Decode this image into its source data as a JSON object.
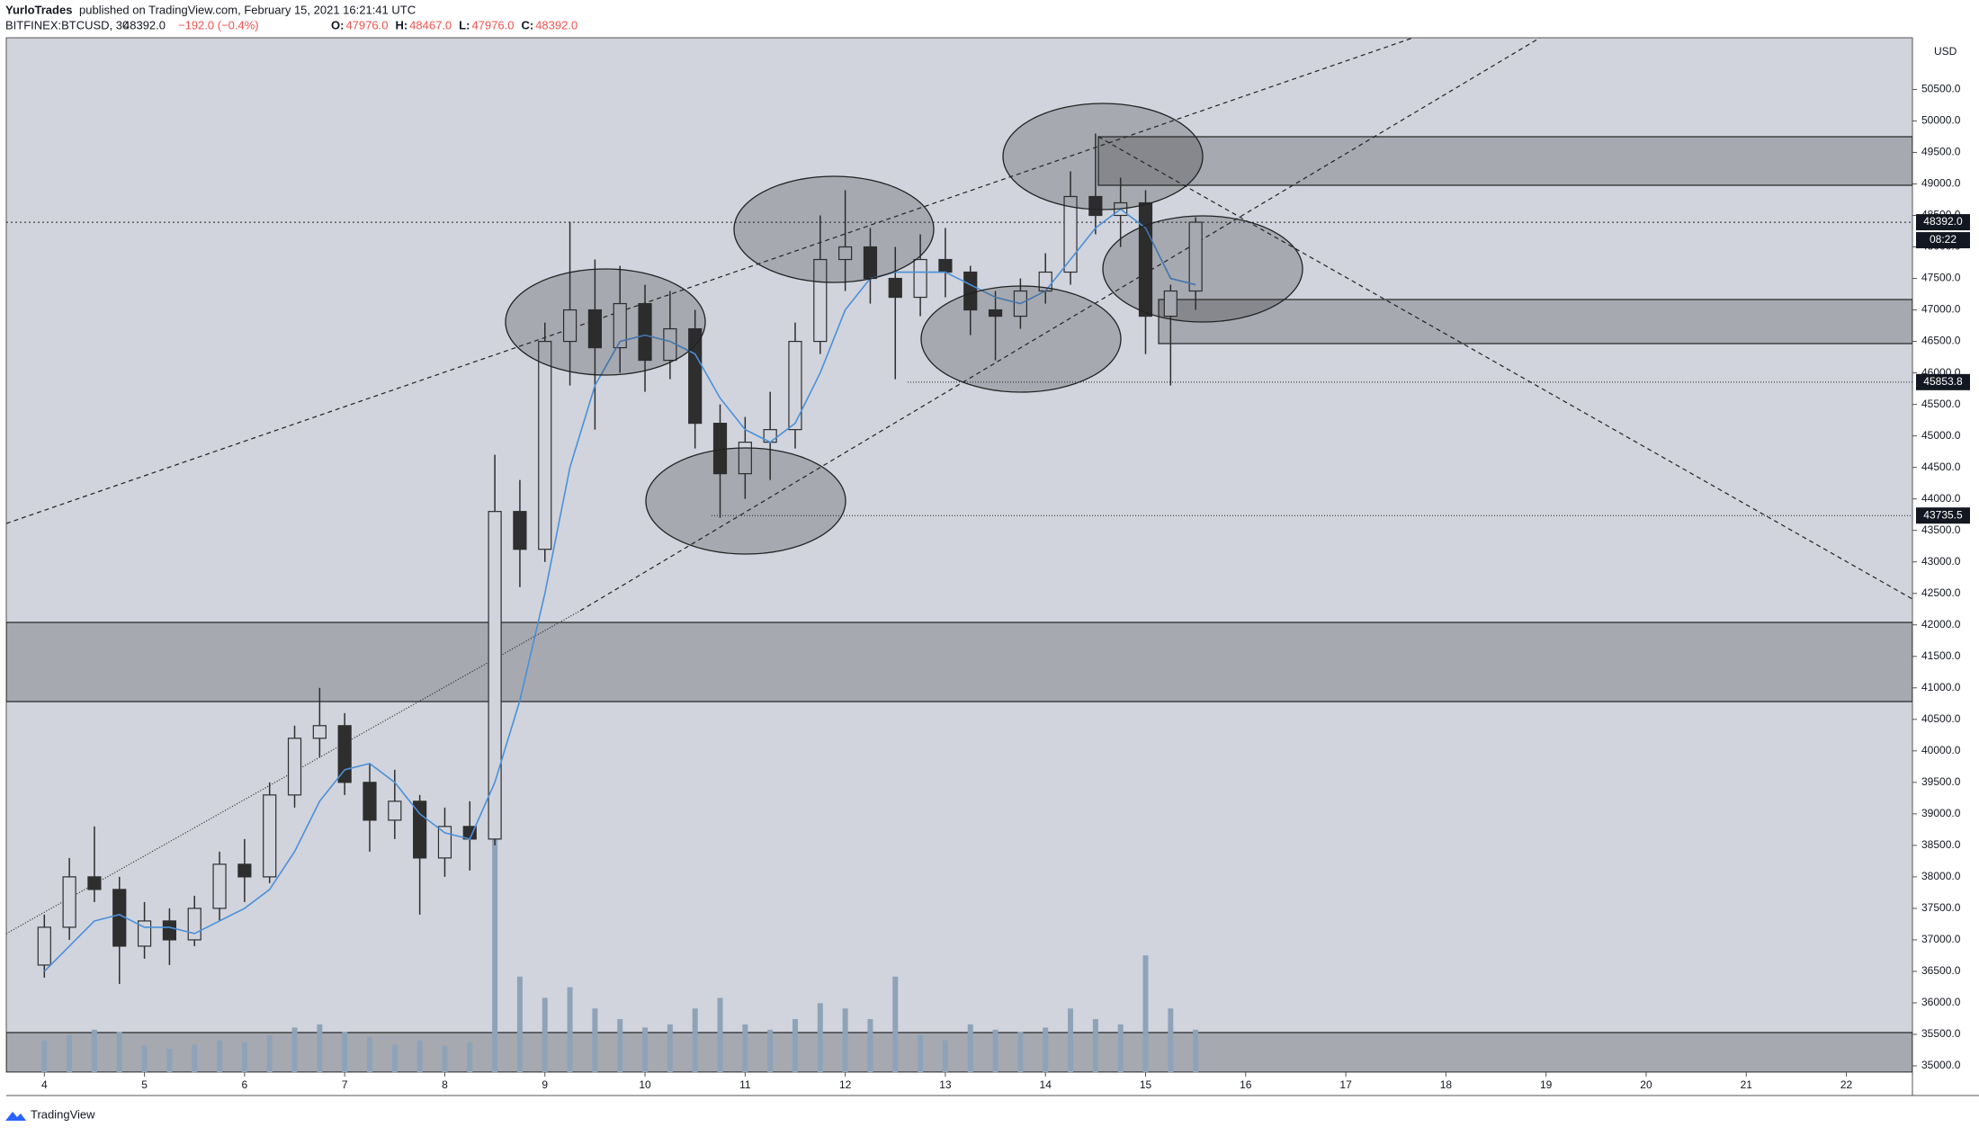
{
  "header": {
    "publisher": "YurloTrades",
    "published": "published on TradingView.com, February 15, 2021 16:21:41 UTC",
    "symbol": "BITFINEX:BTCUSD, 30",
    "last": "48392.0",
    "change": "−192.0 (−0.4%)",
    "ohlc": [
      {
        "label": "O:",
        "value": "47976.0"
      },
      {
        "label": "H:",
        "value": "48467.0"
      },
      {
        "label": "L:",
        "value": "47976.0"
      },
      {
        "label": "C:",
        "value": "48392.0"
      }
    ],
    "currency": "USD",
    "countdown": "08:22",
    "brand": "TradingView"
  },
  "chart_data": {
    "type": "candlestick",
    "x": [
      4.0,
      4.25,
      4.5,
      4.75,
      5.0,
      5.25,
      5.5,
      5.75,
      6.0,
      6.25,
      6.5,
      6.75,
      7.0,
      7.25,
      7.5,
      7.75,
      8.0,
      8.25,
      8.5,
      8.75,
      9.0,
      9.25,
      9.5,
      9.75,
      10.0,
      10.25,
      10.5,
      10.75,
      11.0,
      11.25,
      11.5,
      11.75,
      12.0,
      12.25,
      12.5,
      12.75,
      13.0,
      13.25,
      13.5,
      13.75,
      14.0,
      14.25,
      14.5,
      14.75,
      15.0,
      15.25,
      15.5
    ],
    "open": [
      36600,
      37200,
      38000,
      37800,
      36900,
      37300,
      37000,
      37500,
      38200,
      38000,
      39300,
      40200,
      40400,
      39500,
      38900,
      39200,
      38300,
      38800,
      38600,
      43800,
      43200,
      46500,
      47000,
      46400,
      47100,
      46200,
      46700,
      45200,
      44400,
      44900,
      45100,
      46500,
      47800,
      48000,
      47500,
      47200,
      47800,
      47600,
      47000,
      46900,
      47300,
      47600,
      48800,
      48500,
      48700,
      46900,
      47300
    ],
    "high": [
      37400,
      38300,
      38800,
      38000,
      37600,
      37500,
      37700,
      38400,
      38600,
      39500,
      40400,
      41000,
      40600,
      39800,
      39700,
      39300,
      39100,
      39200,
      44700,
      44300,
      46800,
      48400,
      47800,
      47700,
      47400,
      47300,
      47000,
      45500,
      45300,
      45700,
      46800,
      48500,
      48900,
      48300,
      48000,
      48200,
      48300,
      47700,
      47300,
      47500,
      47900,
      49200,
      49800,
      49100,
      48900,
      47400,
      48470
    ],
    "low": [
      36400,
      37000,
      37600,
      36300,
      36700,
      36600,
      36900,
      37300,
      37600,
      37900,
      39100,
      39900,
      39300,
      38400,
      38600,
      37400,
      38000,
      38100,
      38500,
      42600,
      43000,
      45800,
      45100,
      46000,
      45700,
      45900,
      44800,
      43700,
      44000,
      44300,
      44800,
      46300,
      47300,
      47100,
      45900,
      46900,
      47200,
      46600,
      46200,
      46700,
      47100,
      47400,
      48200,
      48000,
      46300,
      45800,
      47000
    ],
    "close": [
      37200,
      38000,
      37800,
      36900,
      37300,
      37000,
      37500,
      38200,
      38000,
      39300,
      40200,
      40400,
      39500,
      38900,
      39200,
      38300,
      38800,
      38600,
      43800,
      43200,
      46500,
      47000,
      46400,
      47100,
      46200,
      46700,
      45200,
      44400,
      44900,
      45100,
      46500,
      47800,
      48000,
      47500,
      47200,
      47800,
      47600,
      47000,
      46900,
      47300,
      47600,
      48800,
      48500,
      48700,
      46900,
      47300,
      48392
    ],
    "ma": [
      36500,
      36900,
      37300,
      37400,
      37200,
      37200,
      37100,
      37300,
      37500,
      37800,
      38400,
      39200,
      39700,
      39800,
      39500,
      39000,
      38700,
      38600,
      39500,
      40800,
      42500,
      44500,
      45800,
      46500,
      46600,
      46500,
      46300,
      45600,
      45100,
      44900,
      45200,
      46000,
      47000,
      47500,
      47600,
      47600,
      47600,
      47400,
      47200,
      47100,
      47300,
      47800,
      48300,
      48600,
      48300,
      47500,
      47400
    ],
    "volume": [
      300,
      350,
      400,
      380,
      250,
      220,
      260,
      300,
      280,
      350,
      420,
      450,
      380,
      330,
      260,
      300,
      250,
      280,
      2200,
      900,
      700,
      800,
      600,
      500,
      420,
      450,
      600,
      700,
      450,
      400,
      500,
      650,
      600,
      500,
      900,
      350,
      300,
      450,
      400,
      380,
      420,
      600,
      500,
      450,
      1100,
      600,
      400
    ],
    "candle_color": "#2e2e2e",
    "ma_color": "#4a90d9",
    "volume_color": "#8fa3b8",
    "xlim": [
      3.62,
      22.66
    ],
    "xticks": [
      4,
      5,
      6,
      7,
      8,
      9,
      10,
      11,
      12,
      13,
      14,
      15,
      16,
      17,
      18,
      19,
      20,
      21,
      22
    ],
    "ylim": [
      34900,
      51320
    ],
    "yticks": [
      {
        "value": 35000,
        "label": "35000.0"
      },
      {
        "value": 35500,
        "label": "35500.0"
      },
      {
        "value": 36000,
        "label": "36000.0"
      },
      {
        "value": 36500,
        "label": "36500.0"
      },
      {
        "value": 37000,
        "label": "37000.0"
      },
      {
        "value": 37500,
        "label": "37500.0"
      },
      {
        "value": 38000,
        "label": "38000.0"
      },
      {
        "value": 38500,
        "label": "38500.0"
      },
      {
        "value": 39000,
        "label": "39000.0"
      },
      {
        "value": 39500,
        "label": "39500.0"
      },
      {
        "value": 40000,
        "label": "40000.0"
      },
      {
        "value": 40500,
        "label": "40500.0"
      },
      {
        "value": 41000,
        "label": "41000.0"
      },
      {
        "value": 41500,
        "label": "41500.0"
      },
      {
        "value": 42000,
        "label": "42000.0"
      },
      {
        "value": 42500,
        "label": "42500.0"
      },
      {
        "value": 43000,
        "label": "43000.0"
      },
      {
        "value": 43500,
        "label": "43500.0"
      },
      {
        "value": 44000,
        "label": "44000.0"
      },
      {
        "value": 44500,
        "label": "44500.0"
      },
      {
        "value": 45000,
        "label": "45000.0"
      },
      {
        "value": 45500,
        "label": "45500.0"
      },
      {
        "value": 46000,
        "label": "46000.0"
      },
      {
        "value": 46500,
        "label": "46500.0"
      },
      {
        "value": 47000,
        "label": "47000.0"
      },
      {
        "value": 47500,
        "label": "47500.0"
      },
      {
        "value": 48000,
        "label": "48000.0"
      },
      {
        "value": 48500,
        "label": "48500.0"
      },
      {
        "value": 49000,
        "label": "49000.0"
      },
      {
        "value": 49500,
        "label": "49500.0"
      },
      {
        "value": 50000,
        "label": "50000.0"
      },
      {
        "value": 50500,
        "label": "50500.0"
      }
    ],
    "price_lines": [
      {
        "value": 48392.0,
        "label": "48392.0"
      },
      {
        "value": 45853.8,
        "label": "45853.8"
      },
      {
        "value": 43735.5,
        "label": "43735.5"
      }
    ]
  }
}
